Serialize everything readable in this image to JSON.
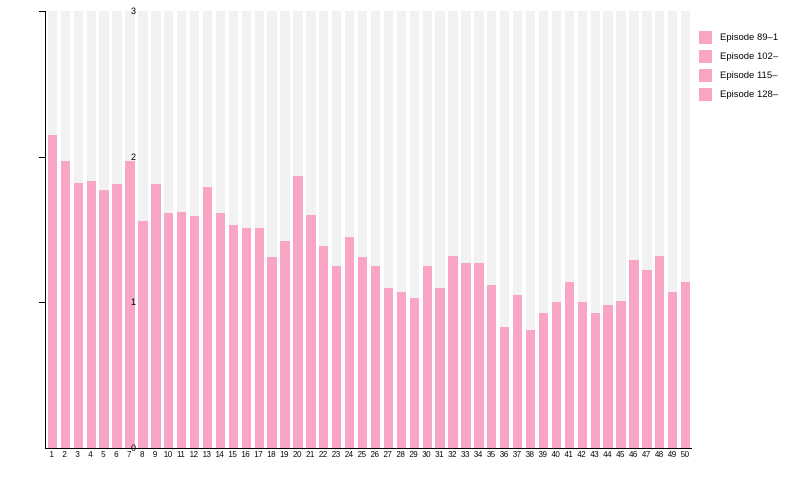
{
  "chart_data": {
    "type": "bar",
    "title": "",
    "xlabel": "",
    "ylabel": "",
    "categories": [
      1,
      2,
      3,
      4,
      5,
      6,
      7,
      8,
      9,
      10,
      11,
      12,
      13,
      14,
      15,
      16,
      17,
      18,
      19,
      20,
      21,
      22,
      23,
      24,
      25,
      26,
      27,
      28,
      29,
      30,
      31,
      32,
      33,
      34,
      35,
      36,
      37,
      38,
      39,
      40,
      41,
      42,
      43,
      44,
      45,
      46,
      47,
      48,
      49,
      50
    ],
    "values": [
      2.15,
      1.97,
      1.82,
      1.83,
      1.77,
      1.81,
      1.97,
      1.56,
      1.81,
      1.61,
      1.62,
      1.59,
      1.79,
      1.61,
      1.53,
      1.51,
      1.51,
      1.31,
      1.42,
      1.87,
      1.6,
      1.39,
      1.25,
      1.45,
      1.31,
      1.25,
      1.1,
      1.07,
      1.03,
      1.25,
      1.1,
      1.32,
      1.27,
      1.27,
      1.12,
      0.83,
      1.05,
      0.81,
      0.93,
      1.0,
      1.14,
      1.0,
      0.93,
      0.98,
      1.01,
      1.29,
      1.22,
      1.32,
      1.07,
      1.14
    ],
    "ylim": [
      0,
      3
    ],
    "yticks": [
      0,
      1,
      2,
      3
    ],
    "grid": false,
    "legend_position": "top-right",
    "legend_entries": [
      {
        "label": "Episode 89–1",
        "color": "#F9A6C6"
      },
      {
        "label": "Episode 102–",
        "color": "#F9A6C6"
      },
      {
        "label": "Episode 115–",
        "color": "#F9A6C6"
      },
      {
        "label": "Episode 128–",
        "color": "#F9A6C6"
      }
    ],
    "colors": {
      "bar": "#F9A6C6",
      "background_bar": "#F2F2F2",
      "axis": "#000000",
      "text": "#000000"
    }
  }
}
